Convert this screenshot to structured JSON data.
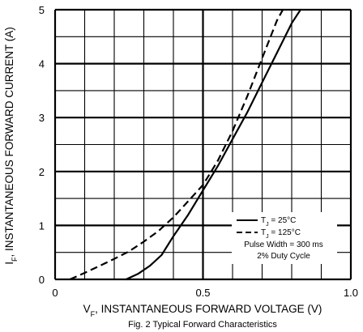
{
  "chart_data": {
    "type": "line",
    "caption": "Fig. 2  Typical Forward Characteristics",
    "xlabel": {
      "main": "V",
      "sub": "F",
      "rest": ", INSTANTANEOUS FORWARD VOLTAGE (V)"
    },
    "ylabel": {
      "main": "I",
      "sub": "F",
      "rest": ", INSTANTANEOUS FORWARD CURRENT (A)"
    },
    "xlim": [
      0,
      1.0
    ],
    "ylim": [
      0,
      5
    ],
    "x_ticks": [
      {
        "value": 0,
        "label": "0"
      },
      {
        "value": 0.5,
        "label": "0.5"
      },
      {
        "value": 1.0,
        "label": "1.0"
      }
    ],
    "y_ticks": [
      {
        "value": 0,
        "label": "0"
      },
      {
        "value": 1,
        "label": "1"
      },
      {
        "value": 2,
        "label": "2"
      },
      {
        "value": 3,
        "label": "3"
      },
      {
        "value": 4,
        "label": "4"
      },
      {
        "value": 5,
        "label": "5"
      }
    ],
    "grid": {
      "x_step": 0.1,
      "y_step": 0.5
    },
    "series": [
      {
        "name": "Tj = 25°C",
        "style": "solid",
        "color": "#000000",
        "points": [
          [
            0.24,
            0.0
          ],
          [
            0.28,
            0.1
          ],
          [
            0.32,
            0.25
          ],
          [
            0.36,
            0.45
          ],
          [
            0.4,
            0.8
          ],
          [
            0.45,
            1.2
          ],
          [
            0.5,
            1.65
          ],
          [
            0.55,
            2.1
          ],
          [
            0.6,
            2.6
          ],
          [
            0.65,
            3.1
          ],
          [
            0.7,
            3.65
          ],
          [
            0.75,
            4.2
          ],
          [
            0.8,
            4.75
          ],
          [
            0.83,
            5.0
          ]
        ]
      },
      {
        "name": "Tj = 125°C",
        "style": "dashed",
        "color": "#000000",
        "points": [
          [
            0.05,
            0.0
          ],
          [
            0.1,
            0.12
          ],
          [
            0.15,
            0.25
          ],
          [
            0.2,
            0.38
          ],
          [
            0.25,
            0.52
          ],
          [
            0.3,
            0.7
          ],
          [
            0.35,
            0.9
          ],
          [
            0.4,
            1.15
          ],
          [
            0.45,
            1.45
          ],
          [
            0.5,
            1.75
          ],
          [
            0.55,
            2.2
          ],
          [
            0.6,
            2.75
          ],
          [
            0.65,
            3.4
          ],
          [
            0.7,
            4.1
          ],
          [
            0.75,
            4.8
          ],
          [
            0.77,
            5.0
          ]
        ]
      }
    ],
    "legend": {
      "position": "bottom-right",
      "entries": [
        {
          "style": "solid",
          "label": "T",
          "sub": "J",
          "rest": " = 25°C"
        },
        {
          "style": "dashed",
          "label": "T",
          "sub": "J",
          "rest": " = 125°C"
        }
      ],
      "notes": [
        "Pulse Width = 300 ms",
        "2% Duty Cycle"
      ]
    }
  }
}
